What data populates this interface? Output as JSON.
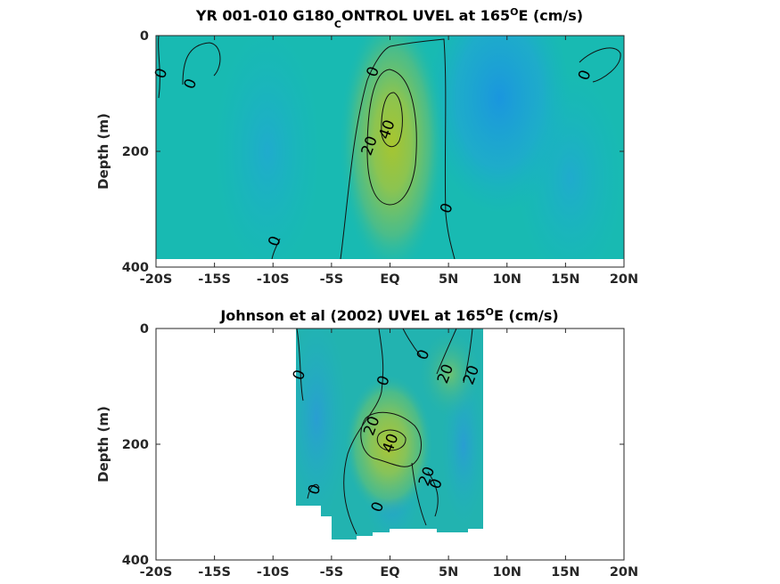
{
  "chart_data": [
    {
      "type": "heatmap",
      "title_main": "YR 001-010 G180",
      "title_sub": "C",
      "title_rest": "ONTROL UVEL at 165",
      "title_sup": "O",
      "title_end": "E (cm/s)",
      "ylabel": "Depth (m)",
      "xlabel": "",
      "xlim": [
        -20,
        20
      ],
      "ylim": [
        0,
        400
      ],
      "y_reversed": true,
      "x_ticks": [
        -20,
        -15,
        -10,
        -5,
        0,
        5,
        10,
        15,
        20
      ],
      "x_tick_labels": [
        "-20S",
        "-15S",
        "-10S",
        "-5S",
        "EQ",
        "5N",
        "10N",
        "15N",
        "20N"
      ],
      "y_ticks": [
        0,
        200,
        400
      ],
      "y_tick_labels": [
        "0",
        "200",
        "400"
      ],
      "data_extent": {
        "lat": [
          -20,
          20
        ],
        "depth": [
          0,
          385
        ]
      },
      "contour_levels": [
        0,
        20,
        40
      ],
      "contour_labels": [
        {
          "text": "0",
          "lat": -19.6,
          "depth": 65
        },
        {
          "text": "0",
          "lat": -17.1,
          "depth": 83
        },
        {
          "text": "0",
          "lat": -1.5,
          "depth": 62
        },
        {
          "text": "40",
          "lat": -0.3,
          "depth": 162
        },
        {
          "text": "20",
          "lat": -1.8,
          "depth": 190
        },
        {
          "text": "0",
          "lat": 4.8,
          "depth": 298
        },
        {
          "text": "0",
          "lat": 16.6,
          "depth": 68
        },
        {
          "text": "0",
          "lat": -9.9,
          "depth": 355
        }
      ],
      "features": [
        {
          "kind": "core",
          "lat": 0.5,
          "depth": 150,
          "value": 48
        },
        {
          "kind": "westward",
          "lat": 9,
          "depth": 20,
          "value": -12
        }
      ]
    },
    {
      "type": "heatmap",
      "title_main": "Johnson et al (2002) UVEL at 165",
      "title_sup": "O",
      "title_end": "E (cm/s)",
      "ylabel": "Depth (m)",
      "xlabel": "",
      "xlim": [
        -20,
        20
      ],
      "ylim": [
        0,
        400
      ],
      "y_reversed": true,
      "x_ticks": [
        -20,
        -15,
        -10,
        -5,
        0,
        5,
        10,
        15,
        20
      ],
      "x_tick_labels": [
        "-20S",
        "-15S",
        "-10S",
        "-5S",
        "EQ",
        "5N",
        "10N",
        "15N",
        "20N"
      ],
      "y_ticks": [
        0,
        200,
        400
      ],
      "y_tick_labels": [
        "0",
        "200",
        "400"
      ],
      "data_extent": {
        "lat": [
          -8,
          8
        ],
        "depth": [
          0,
          360
        ]
      },
      "contour_levels": [
        0,
        20,
        40
      ],
      "contour_labels": [
        {
          "text": "0",
          "lat": -7.8,
          "depth": 80
        },
        {
          "text": "0",
          "lat": -0.6,
          "depth": 90
        },
        {
          "text": "0",
          "lat": 2.8,
          "depth": 45
        },
        {
          "text": "20",
          "lat": 4.7,
          "depth": 78
        },
        {
          "text": "20",
          "lat": 6.9,
          "depth": 80
        },
        {
          "text": "20",
          "lat": -1.6,
          "depth": 168
        },
        {
          "text": "40",
          "lat": 0.0,
          "depth": 198
        },
        {
          "text": "20",
          "lat": 3.1,
          "depth": 255
        },
        {
          "text": "0",
          "lat": 3.9,
          "depth": 268
        },
        {
          "text": "0",
          "lat": -6.5,
          "depth": 278
        },
        {
          "text": "0",
          "lat": -1.1,
          "depth": 308
        }
      ],
      "features": [
        {
          "kind": "core",
          "lat": 0.0,
          "depth": 185,
          "value": 45
        },
        {
          "kind": "eastward",
          "lat": 5.5,
          "depth": 70,
          "value": 22
        }
      ]
    }
  ]
}
